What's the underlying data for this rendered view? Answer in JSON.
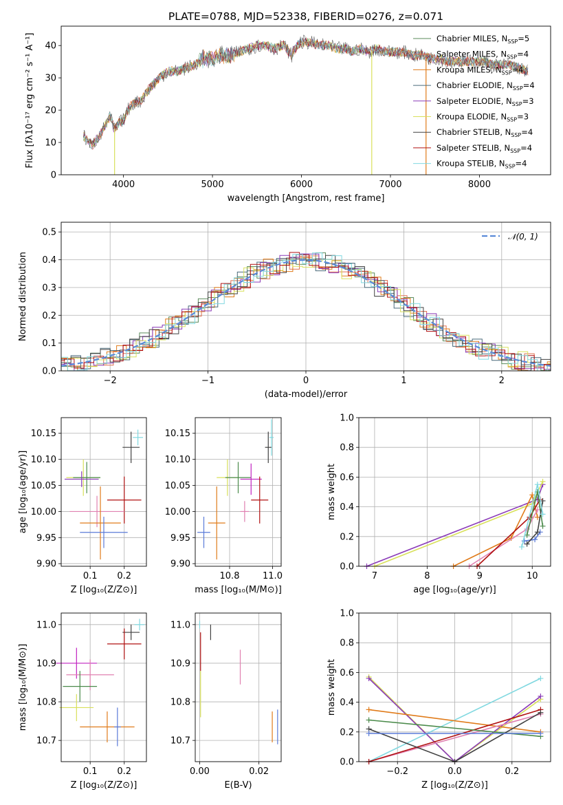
{
  "figure": {
    "title": "PLATE=0788, MJD=52338, FIBERID=0276, z=0.071"
  },
  "colors": {
    "chabrier_miles": "#5a8a5a",
    "salpeter_miles": "#e07050",
    "kroupa_miles": "#e07b1a",
    "chabrier_elodie": "#4a6a7a",
    "salpeter_elodie": "#8a3ab8",
    "kroupa_elodie": "#d8e05a",
    "chabrier_stelib": "#404040",
    "salpeter_stelib": "#b01010",
    "kroupa_stelib": "#80d8e0",
    "gaussian": "#5a8ad8",
    "blue": "#5a7ad8",
    "pink": "#e080b0",
    "magenta": "#c020c0",
    "green": "#4a8a4a"
  },
  "chart_data": [
    {
      "id": "spectrum",
      "type": "line",
      "xlabel": "wavelength [Angstrom, rest frame]",
      "ylabel": "Flux [fλ10⁻¹⁷ erg cm⁻² s⁻¹ A⁻¹]",
      "xlim": [
        3300,
        8800
      ],
      "ylim": [
        0,
        46
      ],
      "xticks": [
        4000,
        5000,
        6000,
        7000,
        8000
      ],
      "yticks": [
        0,
        10,
        20,
        30,
        40
      ],
      "legend_position": "top-right",
      "series": [
        {
          "name": "Chabrier MILES, N_SSP=5",
          "label_main": "Chabrier MILES, N",
          "sub": "SSP",
          "suffix": "=5",
          "color": "#5a8a5a"
        },
        {
          "name": "Salpeter MILES, N_SSP=4",
          "label_main": "Salpeter MILES, N",
          "sub": "SSP",
          "suffix": "=4",
          "color": "#e07050"
        },
        {
          "name": "Kroupa MILES, N_SSP=4",
          "label_main": "Kroupa MILES, N",
          "sub": "SSP",
          "suffix": "=4",
          "color": "#e07b1a"
        },
        {
          "name": "Chabrier ELODIE, N_SSP=4",
          "label_main": "Chabrier ELODIE, N",
          "sub": "SSP",
          "suffix": "=4",
          "color": "#4a6a7a"
        },
        {
          "name": "Salpeter ELODIE, N_SSP=3",
          "label_main": "Salpeter ELODIE, N",
          "sub": "SSP",
          "suffix": "=3",
          "color": "#8a3ab8"
        },
        {
          "name": "Kroupa ELODIE, N_SSP=3",
          "label_main": "Kroupa ELODIE, N",
          "sub": "SSP",
          "suffix": "=3",
          "color": "#d8e05a"
        },
        {
          "name": "Chabrier STELIB, N_SSP=4",
          "label_main": "Chabrier STELIB, N",
          "sub": "SSP",
          "suffix": "=4",
          "color": "#404040"
        },
        {
          "name": "Salpeter STELIB, N_SSP=4",
          "label_main": "Salpeter STELIB, N",
          "sub": "SSP",
          "suffix": "=4",
          "color": "#b01010"
        },
        {
          "name": "Kroupa STELIB, N_SSP=4",
          "label_main": "Kroupa STELIB, N",
          "sub": "SSP",
          "suffix": "=4",
          "color": "#80d8e0"
        }
      ],
      "envelope": {
        "x": [
          3550,
          3650,
          3750,
          3850,
          3900,
          3950,
          4000,
          4050,
          4100,
          4200,
          4300,
          4400,
          4500,
          4600,
          4700,
          4800,
          4900,
          5000,
          5100,
          5200,
          5300,
          5400,
          5500,
          5600,
          5700,
          5800,
          5890,
          5950,
          6000,
          6100,
          6200,
          6300,
          6400,
          6500,
          6563,
          6650,
          6750,
          6850,
          6950,
          7050,
          7150,
          7250,
          7350,
          7450,
          7550,
          7650,
          7750,
          7850,
          7950,
          8050,
          8150,
          8250,
          8350,
          8450,
          8550
        ],
        "y": [
          12,
          9,
          13,
          18,
          14,
          16,
          17,
          20,
          22,
          23,
          27,
          30,
          32,
          32,
          33,
          34,
          36,
          36,
          37,
          37,
          38,
          39,
          40,
          40,
          39,
          40,
          37,
          40,
          41,
          41,
          40,
          40,
          39,
          39,
          38,
          39,
          38,
          39,
          38,
          38,
          38,
          37,
          37,
          36,
          36,
          35,
          35,
          35,
          35,
          35,
          34,
          34,
          34,
          33,
          32
        ],
        "dropouts": [
          {
            "x": 3900,
            "color": "#d8e05a"
          },
          {
            "x": 6790,
            "color": "#d8e05a"
          },
          {
            "x": 7400,
            "color": "#e07b1a"
          }
        ]
      }
    },
    {
      "id": "residuals",
      "type": "line",
      "xlabel": "(data-model)/error",
      "ylabel": "Normed distribution",
      "xlim": [
        -2.5,
        2.5
      ],
      "ylim": [
        0,
        0.535
      ],
      "xticks": [
        -2,
        -1,
        0,
        1,
        2
      ],
      "yticks": [
        0.0,
        0.1,
        0.2,
        0.3,
        0.4,
        0.5
      ],
      "grid": true,
      "legend_position": "top-right",
      "gaussian_label": "𝒩(0, 1)"
    },
    {
      "id": "age_vs_Z",
      "type": "scatter",
      "xlabel": "Z [log₁₀(Z/Z⊙)]",
      "ylabel": "age  [log₁₀(age/yr)]",
      "xlim": [
        0.015,
        0.265
      ],
      "ylim": [
        9.895,
        10.18
      ],
      "xticks": [
        0.1,
        0.2
      ],
      "yticks": [
        9.9,
        9.95,
        10.0,
        10.05,
        10.1,
        10.15
      ],
      "grid": true,
      "points": [
        {
          "x": 0.24,
          "y": 10.142,
          "xe": 0.015,
          "ye": 0.015,
          "color": "#80d8e0"
        },
        {
          "x": 0.22,
          "y": 10.123,
          "xe": 0.025,
          "ye": 0.03,
          "color": "#404040"
        },
        {
          "x": 0.08,
          "y": 10.065,
          "xe": 0.05,
          "ye": 0.035,
          "color": "#d8e05a"
        },
        {
          "x": 0.09,
          "y": 10.065,
          "xe": 0.04,
          "ye": 0.03,
          "color": "#4a8a4a"
        },
        {
          "x": 0.075,
          "y": 10.062,
          "xe": 0.05,
          "ye": 0.015,
          "color": "#8a3ab8"
        },
        {
          "x": 0.2,
          "y": 10.022,
          "xe": 0.05,
          "ye": 0.045,
          "color": "#b01010"
        },
        {
          "x": 0.12,
          "y": 10.0,
          "xe": 0.08,
          "ye": 0.03,
          "color": "#e080b0"
        },
        {
          "x": 0.13,
          "y": 9.978,
          "xe": 0.06,
          "ye": 0.07,
          "color": "#e07b1a"
        },
        {
          "x": 0.14,
          "y": 9.96,
          "xe": 0.07,
          "ye": 0.03,
          "color": "#5a7ad8"
        }
      ]
    },
    {
      "id": "age_vs_mass",
      "type": "scatter",
      "xlabel": "mass [log₁₀(M/M⊙)]",
      "ylabel": "",
      "xlim": [
        10.64,
        11.04
      ],
      "ylim": [
        9.895,
        10.18
      ],
      "xticks": [
        10.8,
        11.0
      ],
      "yticks": [
        9.9,
        9.95,
        10.0,
        10.05,
        10.1,
        10.15
      ],
      "grid": true,
      "points": [
        {
          "x": 10.995,
          "y": 10.142,
          "xe": 0.01,
          "ye": 0.035,
          "color": "#80d8e0"
        },
        {
          "x": 10.98,
          "y": 10.123,
          "xe": 0.015,
          "ye": 0.03,
          "color": "#404040"
        },
        {
          "x": 10.79,
          "y": 10.065,
          "xe": 0.05,
          "ye": 0.035,
          "color": "#d8e05a"
        },
        {
          "x": 10.84,
          "y": 10.065,
          "xe": 0.06,
          "ye": 0.03,
          "color": "#4a8a4a"
        },
        {
          "x": 10.9,
          "y": 10.062,
          "xe": 0.05,
          "ye": 0.03,
          "color": "#c020c0"
        },
        {
          "x": 10.94,
          "y": 10.022,
          "xe": 0.04,
          "ye": 0.045,
          "color": "#b01010"
        },
        {
          "x": 10.87,
          "y": 10.0,
          "xe": 0.02,
          "ye": 0.02,
          "color": "#e080b0"
        },
        {
          "x": 10.74,
          "y": 9.978,
          "xe": 0.04,
          "ye": 0.07,
          "color": "#e07b1a"
        },
        {
          "x": 10.68,
          "y": 9.96,
          "xe": 0.03,
          "ye": 0.03,
          "color": "#5a7ad8"
        }
      ]
    },
    {
      "id": "mass_vs_Z",
      "type": "scatter",
      "xlabel": "Z [log₁₀(Z/Z⊙)]",
      "ylabel": "mass [log₁₀(M/M⊙)]",
      "xlim": [
        0.015,
        0.265
      ],
      "ylim": [
        10.645,
        11.03
      ],
      "xticks": [
        0.1,
        0.2
      ],
      "yticks": [
        10.7,
        10.8,
        10.9,
        11.0
      ],
      "grid": true,
      "points": [
        {
          "x": 0.245,
          "y": 11.0,
          "xe": 0.015,
          "ye": 0.015,
          "color": "#80d8e0"
        },
        {
          "x": 0.22,
          "y": 10.98,
          "xe": 0.025,
          "ye": 0.02,
          "color": "#404040"
        },
        {
          "x": 0.2,
          "y": 10.95,
          "xe": 0.05,
          "ye": 0.04,
          "color": "#b01010"
        },
        {
          "x": 0.06,
          "y": 10.9,
          "xe": 0.06,
          "ye": 0.04,
          "color": "#c020c0"
        },
        {
          "x": 0.1,
          "y": 10.87,
          "xe": 0.07,
          "ye": 0.04,
          "color": "#e080b0"
        },
        {
          "x": 0.07,
          "y": 10.84,
          "xe": 0.05,
          "ye": 0.04,
          "color": "#4a8a4a"
        },
        {
          "x": 0.06,
          "y": 10.785,
          "xe": 0.05,
          "ye": 0.035,
          "color": "#d8e05a"
        },
        {
          "x": 0.15,
          "y": 10.735,
          "xe": 0.08,
          "ye": 0.04,
          "color": "#e07b1a"
        },
        {
          "x": 0.18,
          "y": 10.735,
          "xe": 0.01,
          "ye": 0.05,
          "color": "#5a7ad8"
        }
      ]
    },
    {
      "id": "mass_vs_ebv",
      "type": "scatter",
      "xlabel": "E(B-V)",
      "ylabel": "",
      "xlim": [
        -0.0015,
        0.0275
      ],
      "ylim": [
        10.645,
        11.03
      ],
      "xticks": [
        0.0,
        0.02
      ],
      "yticks": [
        10.7,
        10.8,
        10.9,
        11.0
      ],
      "grid": true,
      "points": [
        {
          "x": 0.0,
          "y": 11.0,
          "xe": 0.0,
          "ye": 0.01,
          "color": "#80d8e0"
        },
        {
          "x": 0.0037,
          "y": 10.98,
          "xe": 0.0,
          "ye": 0.02,
          "color": "#404040"
        },
        {
          "x": 0.0003,
          "y": 10.93,
          "xe": 0.0,
          "ye": 0.05,
          "color": "#b01010"
        },
        {
          "x": 0.0137,
          "y": 10.89,
          "xe": 0.0,
          "ye": 0.045,
          "color": "#e080b0"
        },
        {
          "x": 0.0003,
          "y": 10.82,
          "xe": 0.0,
          "ye": 0.06,
          "color": "#d8e05a"
        },
        {
          "x": 0.0245,
          "y": 10.735,
          "xe": 0.0,
          "ye": 0.04,
          "color": "#e07b1a"
        },
        {
          "x": 0.0263,
          "y": 10.735,
          "xe": 0.0,
          "ye": 0.045,
          "color": "#5a7ad8"
        }
      ]
    },
    {
      "id": "mass_weight_vs_age",
      "type": "line",
      "xlabel": "age  [log₁₀(age/yr)]",
      "ylabel": "mass weight",
      "xlim": [
        6.7,
        10.35
      ],
      "ylim": [
        0,
        1.0
      ],
      "xticks": [
        7,
        8,
        9,
        10
      ],
      "yticks": [
        0.0,
        0.2,
        0.4,
        0.6,
        0.8,
        1.0
      ],
      "grid": true,
      "series": [
        {
          "color": "#8a3ab8",
          "x": [
            6.85,
            10.1,
            10.2
          ],
          "y": [
            0.0,
            0.45,
            0.55
          ]
        },
        {
          "color": "#d8e05a",
          "x": [
            7.0,
            10.0,
            10.2
          ],
          "y": [
            0.0,
            0.42,
            0.57
          ]
        },
        {
          "color": "#e07b1a",
          "x": [
            8.5,
            9.6,
            10.0,
            10.1
          ],
          "y": [
            0.0,
            0.19,
            0.48,
            0.33
          ]
        },
        {
          "color": "#e080b0",
          "x": [
            8.8,
            9.9,
            10.1
          ],
          "y": [
            0.0,
            0.25,
            0.38
          ]
        },
        {
          "color": "#b01010",
          "x": [
            8.95,
            9.95,
            10.15
          ],
          "y": [
            0.0,
            0.33,
            0.45
          ]
        },
        {
          "color": "#5a7ad8",
          "x": [
            9.85,
            10.05,
            10.15
          ],
          "y": [
            0.17,
            0.18,
            0.23
          ]
        },
        {
          "color": "#4a8a4a",
          "x": [
            9.9,
            10.1,
            10.2
          ],
          "y": [
            0.21,
            0.5,
            0.27
          ]
        },
        {
          "color": "#404040",
          "x": [
            9.9,
            10.1,
            10.2
          ],
          "y": [
            0.15,
            0.23,
            0.44
          ]
        },
        {
          "color": "#80d8e0",
          "x": [
            9.8,
            10.1,
            10.2
          ],
          "y": [
            0.13,
            0.55,
            0.35
          ]
        }
      ]
    },
    {
      "id": "mass_weight_vs_Z",
      "type": "line",
      "xlabel": "Z [log₁₀(Z/Z⊙)]",
      "ylabel": "mass weight",
      "xlim": [
        -0.335,
        0.335
      ],
      "ylim": [
        0,
        1.0
      ],
      "xticks": [
        -0.2,
        0.0,
        0.2
      ],
      "xtick_labels": [
        "−0.2",
        "0.0",
        "0.2"
      ],
      "yticks": [
        0.0,
        0.2,
        0.4,
        0.6,
        0.8,
        1.0
      ],
      "grid": true,
      "series": [
        {
          "color": "#d8e05a",
          "x": [
            -0.3,
            0.0,
            0.3
          ],
          "y": [
            0.57,
            0.0,
            0.42
          ]
        },
        {
          "color": "#8a3ab8",
          "x": [
            -0.3,
            0.0,
            0.3
          ],
          "y": [
            0.56,
            0.0,
            0.44
          ]
        },
        {
          "color": "#80d8e0",
          "x": [
            -0.3,
            0.3
          ],
          "y": [
            0.0,
            0.56
          ]
        },
        {
          "color": "#e07b1a",
          "x": [
            -0.3,
            0.3
          ],
          "y": [
            0.35,
            0.2
          ]
        },
        {
          "color": "#e080b0",
          "x": [
            -0.3,
            0.3
          ],
          "y": [
            0.0,
            0.32
          ]
        },
        {
          "color": "#b01010",
          "x": [
            -0.3,
            0.3
          ],
          "y": [
            0.0,
            0.35
          ]
        },
        {
          "color": "#4a8a4a",
          "x": [
            -0.3,
            0.3
          ],
          "y": [
            0.28,
            0.17
          ]
        },
        {
          "color": "#404040",
          "x": [
            -0.3,
            0.0,
            0.3
          ],
          "y": [
            0.22,
            0.0,
            0.33
          ]
        },
        {
          "color": "#5a7ad8",
          "x": [
            -0.3,
            0.3
          ],
          "y": [
            0.19,
            0.19
          ]
        }
      ]
    }
  ]
}
